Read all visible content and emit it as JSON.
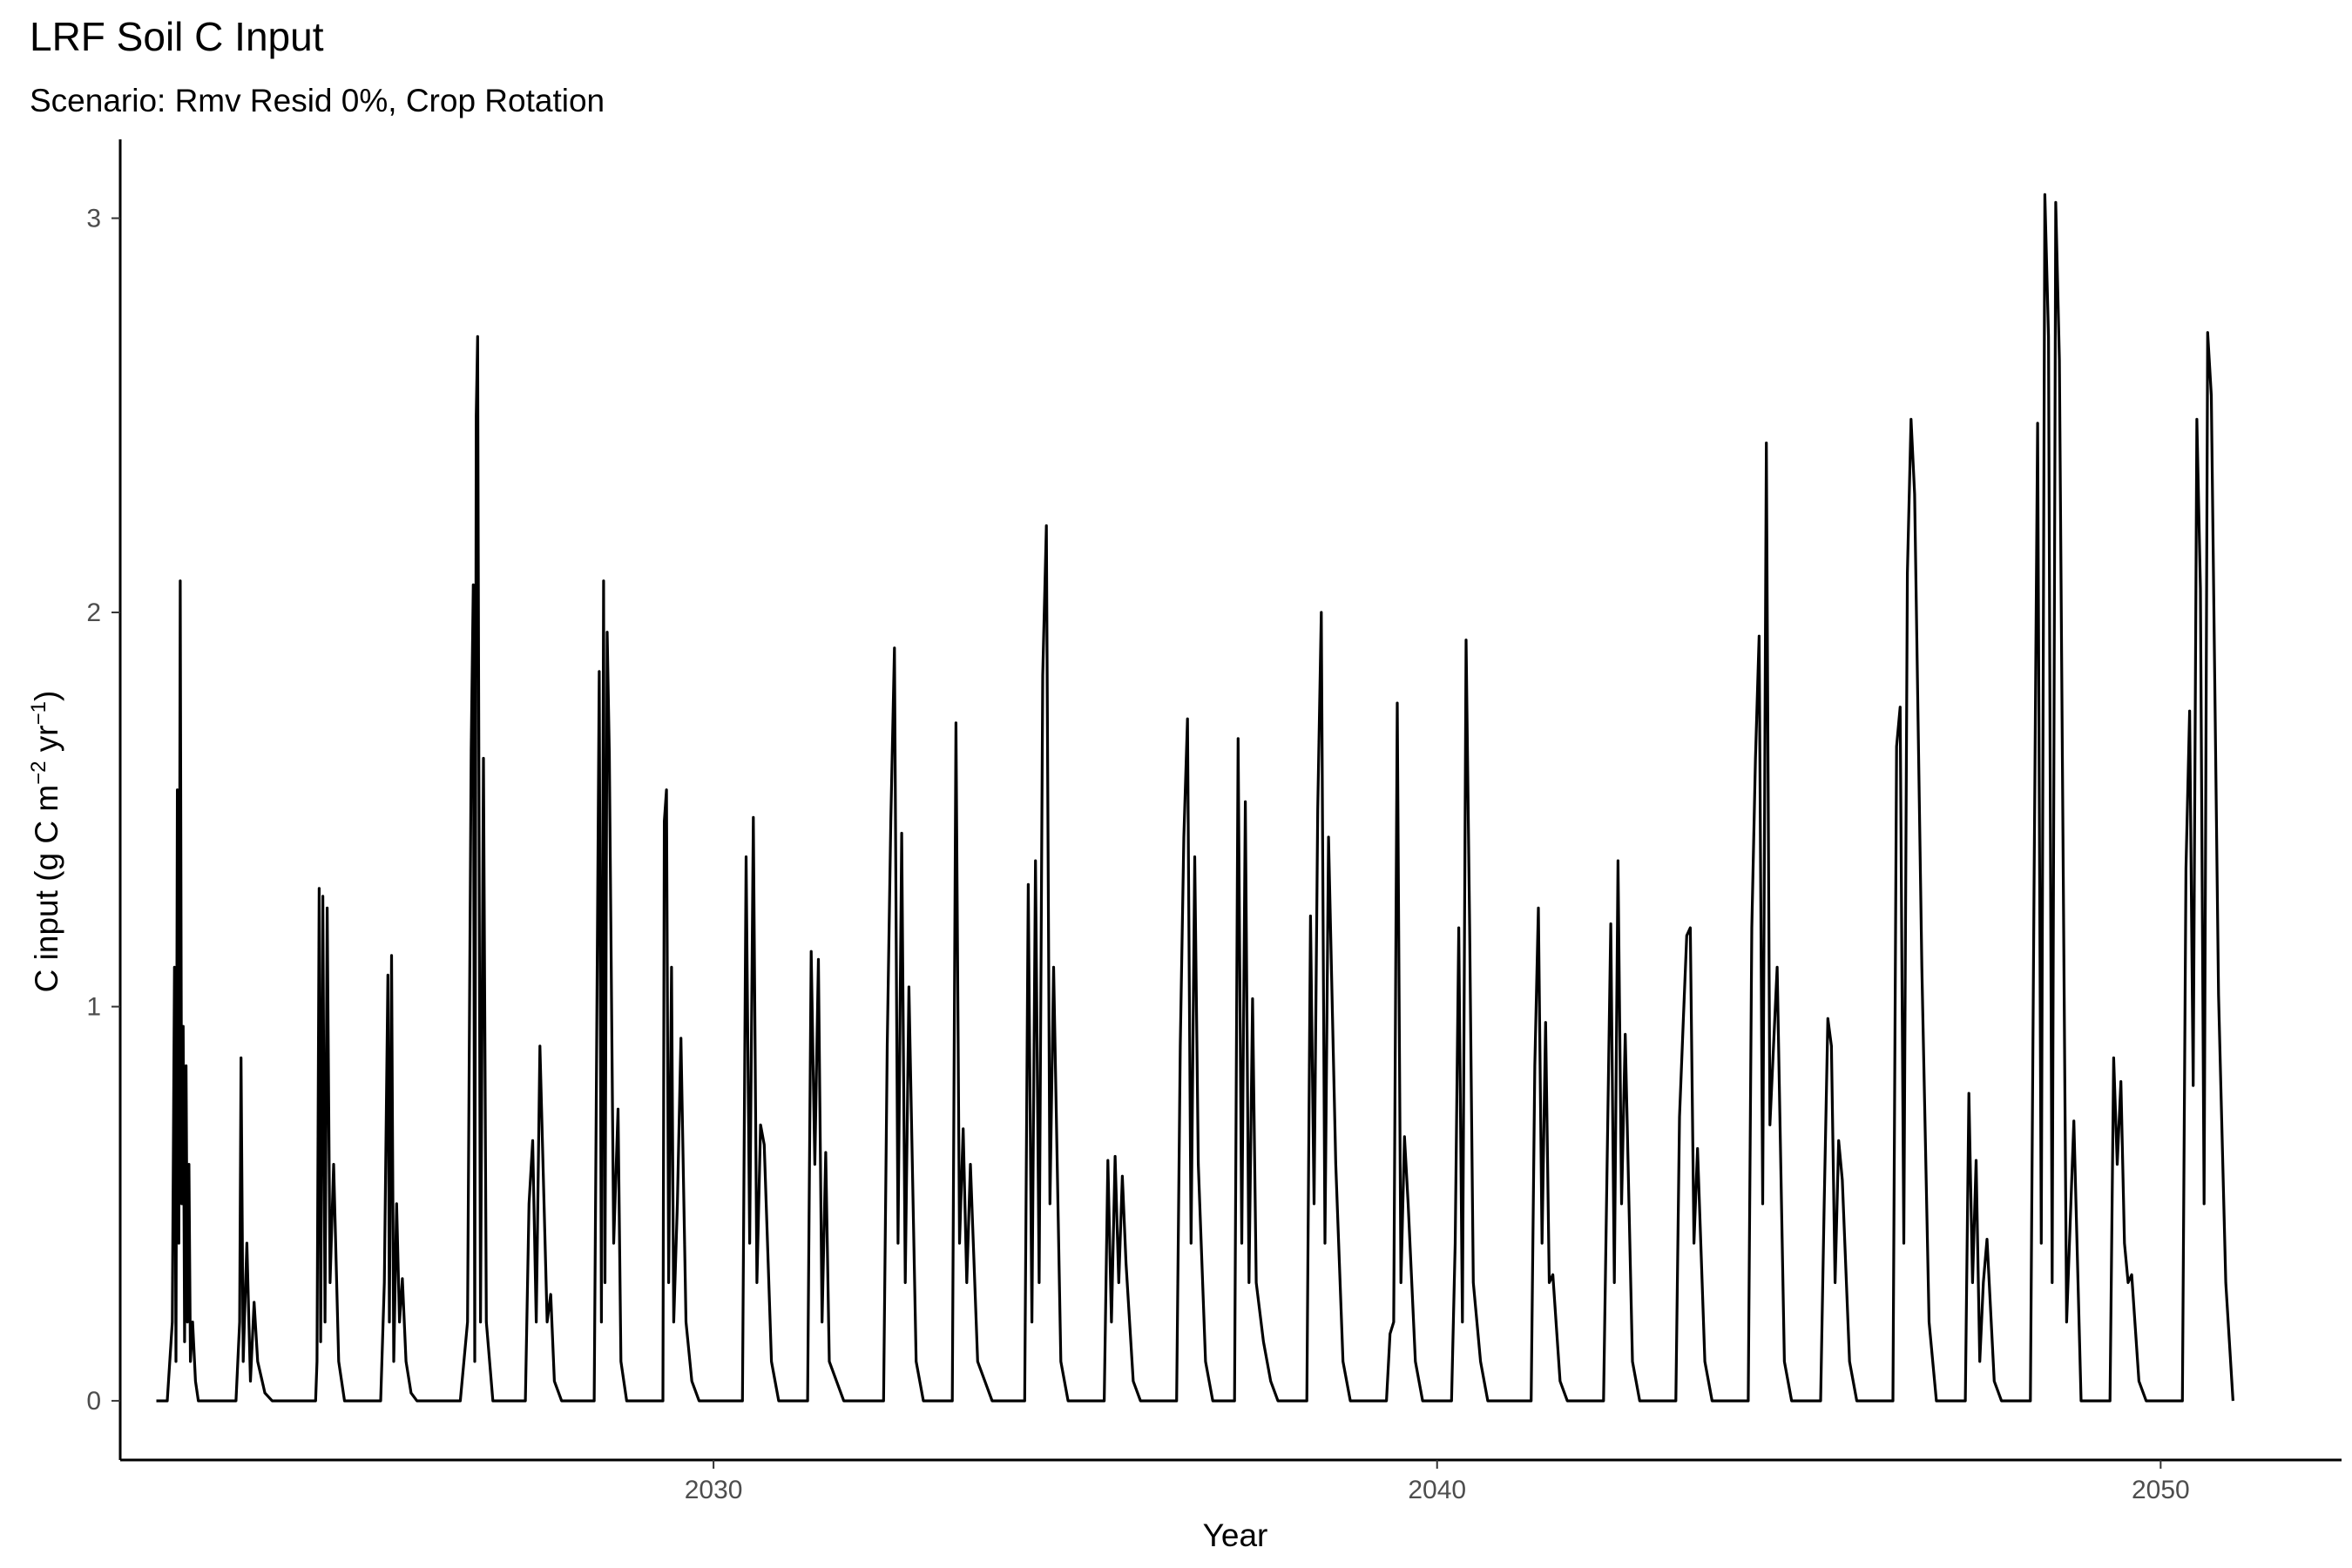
{
  "chart_data": {
    "type": "line",
    "title": "LRF Soil C Input",
    "subtitle": "Scenario: Rmv Resid 0%, Crop Rotation",
    "xlabel": "Year",
    "ylabel_parts": [
      "C input (g C m",
      "−2",
      " yr",
      "−1",
      ")"
    ],
    "x_ticks": [
      2030,
      2040,
      2050
    ],
    "y_ticks": [
      0,
      1,
      2,
      3
    ],
    "xlim": [
      2021.8,
      2052.5
    ],
    "ylim": [
      -0.15,
      3.2
    ],
    "grid": false,
    "legend": "none",
    "series": [
      {
        "x": [
          2022.3,
          2022.45,
          2022.52,
          2022.55,
          2022.57,
          2022.59,
          2022.61,
          2022.63,
          2022.65,
          2022.67,
          2022.69,
          2022.71,
          2022.73,
          2022.75,
          2022.77,
          2022.8,
          2022.84,
          2022.88,
          2022.95,
          2023.0,
          2023.4,
          2023.45,
          2023.47,
          2023.5,
          2023.55,
          2023.6,
          2023.65,
          2023.7,
          2023.8,
          2023.9,
          2024.5,
          2024.52,
          2024.55,
          2024.57,
          2024.6,
          2024.63,
          2024.66,
          2024.7,
          2024.75,
          2024.82,
          2024.9,
          2025.4,
          2025.45,
          2025.5,
          2025.52,
          2025.55,
          2025.58,
          2025.62,
          2025.66,
          2025.7,
          2025.75,
          2025.82,
          2025.9,
          2026.5,
          2026.6,
          2026.65,
          2026.68,
          2026.7,
          2026.72,
          2026.74,
          2026.78,
          2026.82,
          2026.86,
          2026.95,
          2027.4,
          2027.45,
          2027.5,
          2027.55,
          2027.6,
          2027.7,
          2027.75,
          2027.8,
          2027.9,
          2028.35,
          2028.4,
          2028.42,
          2028.45,
          2028.48,
          2028.5,
          2028.53,
          2028.56,
          2028.62,
          2028.68,
          2028.72,
          2028.8,
          2029.3,
          2029.32,
          2029.35,
          2029.38,
          2029.42,
          2029.45,
          2029.5,
          2029.55,
          2029.62,
          2029.7,
          2029.8,
          2030.4,
          2030.45,
          2030.5,
          2030.55,
          2030.6,
          2030.65,
          2030.7,
          2030.8,
          2030.9,
          2031.3,
          2031.35,
          2031.4,
          2031.45,
          2031.5,
          2031.55,
          2031.6,
          2031.7,
          2031.8,
          2032.35,
          2032.4,
          2032.45,
          2032.5,
          2032.55,
          2032.6,
          2032.65,
          2032.7,
          2032.8,
          2032.9,
          2033.3,
          2033.35,
          2033.4,
          2033.45,
          2033.5,
          2033.55,
          2033.65,
          2033.75,
          2033.85,
          2034.3,
          2034.35,
          2034.4,
          2034.45,
          2034.5,
          2034.55,
          2034.6,
          2034.65,
          2034.7,
          2034.8,
          2034.9,
          2035.4,
          2035.45,
          2035.5,
          2035.55,
          2035.6,
          2035.65,
          2035.7,
          2035.8,
          2035.9,
          2036.4,
          2036.45,
          2036.5,
          2036.55,
          2036.6,
          2036.65,
          2036.7,
          2036.8,
          2036.9,
          2037.2,
          2037.25,
          2037.3,
          2037.35,
          2037.4,
          2037.45,
          2037.5,
          2037.6,
          2037.7,
          2037.8,
          2038.2,
          2038.25,
          2038.3,
          2038.35,
          2038.4,
          2038.45,
          2038.5,
          2038.6,
          2038.7,
          2038.8,
          2039.3,
          2039.35,
          2039.4,
          2039.45,
          2039.5,
          2039.55,
          2039.6,
          2039.7,
          2039.8,
          2040.2,
          2040.25,
          2040.3,
          2040.35,
          2040.4,
          2040.45,
          2040.5,
          2040.6,
          2040.7,
          2041.3,
          2041.35,
          2041.4,
          2041.45,
          2041.5,
          2041.55,
          2041.6,
          2041.7,
          2041.8,
          2042.3,
          2042.35,
          2042.4,
          2042.45,
          2042.5,
          2042.55,
          2042.6,
          2042.7,
          2042.8,
          2043.3,
          2043.35,
          2043.4,
          2043.45,
          2043.5,
          2043.55,
          2043.6,
          2043.7,
          2043.8,
          2044.3,
          2044.35,
          2044.4,
          2044.45,
          2044.5,
          2044.55,
          2044.6,
          2044.7,
          2044.8,
          2044.9,
          2045.3,
          2045.35,
          2045.4,
          2045.45,
          2045.5,
          2045.55,
          2045.6,
          2045.7,
          2045.8,
          2046.3,
          2046.35,
          2046.4,
          2046.45,
          2046.5,
          2046.55,
          2046.6,
          2046.7,
          2046.8,
          2046.9,
          2047.3,
          2047.35,
          2047.4,
          2047.45,
          2047.5,
          2047.55,
          2047.6,
          2047.7,
          2047.8,
          2048.2,
          2048.25,
          2048.3,
          2048.35,
          2048.4,
          2048.45,
          2048.5,
          2048.55,
          2048.6,
          2048.7,
          2048.8,
          2048.9,
          2049.3,
          2049.35,
          2049.4,
          2049.45,
          2049.5,
          2049.55,
          2049.6,
          2049.7,
          2049.8,
          2050.3,
          2050.35,
          2050.4,
          2050.45,
          2050.5,
          2050.55,
          2050.6,
          2050.65,
          2050.7,
          2050.8,
          2050.9,
          2051.0
        ],
        "y": [
          0,
          0,
          0.2,
          1.1,
          0.1,
          1.55,
          0.4,
          2.08,
          0.5,
          0.95,
          0.15,
          0.85,
          0.2,
          0.6,
          0.1,
          0.2,
          0.05,
          0,
          0,
          0,
          0,
          0.2,
          0.87,
          0.1,
          0.4,
          0.05,
          0.25,
          0.1,
          0.02,
          0,
          0,
          0.1,
          1.3,
          0.15,
          1.28,
          0.2,
          1.25,
          0.3,
          0.6,
          0.1,
          0,
          0,
          0.3,
          1.08,
          0.2,
          1.13,
          0.1,
          0.5,
          0.2,
          0.31,
          0.1,
          0.02,
          0,
          0,
          0.2,
          1.65,
          2.07,
          0.1,
          2.5,
          2.7,
          0.2,
          1.63,
          0.2,
          0,
          0,
          0.5,
          0.66,
          0.2,
          0.9,
          0.2,
          0.27,
          0.05,
          0,
          0,
          1.3,
          1.85,
          0.2,
          2.08,
          0.3,
          1.95,
          1.64,
          0.4,
          0.74,
          0.1,
          0,
          0,
          1.47,
          1.55,
          0.3,
          1.1,
          0.2,
          0.5,
          0.92,
          0.2,
          0.05,
          0,
          0,
          1.38,
          0.4,
          1.48,
          0.3,
          0.7,
          0.65,
          0.1,
          0,
          0,
          1.14,
          0.6,
          1.12,
          0.2,
          0.63,
          0.1,
          0.05,
          0,
          0,
          0.9,
          1.47,
          1.91,
          0.4,
          1.44,
          0.3,
          1.05,
          0.1,
          0,
          0,
          1.72,
          0.4,
          0.69,
          0.3,
          0.6,
          0.1,
          0.05,
          0,
          0,
          1.31,
          0.2,
          1.37,
          0.3,
          1.84,
          2.22,
          0.5,
          1.1,
          0.1,
          0,
          0,
          0.61,
          0.2,
          0.62,
          0.3,
          0.57,
          0.35,
          0.05,
          0,
          0,
          0.9,
          1.43,
          1.73,
          0.4,
          1.38,
          0.6,
          0.1,
          0,
          0,
          1.68,
          0.4,
          1.52,
          0.3,
          1.02,
          0.3,
          0.15,
          0.05,
          0,
          0,
          1.23,
          0.5,
          1.5,
          2.0,
          0.4,
          1.43,
          0.6,
          0.1,
          0,
          0,
          0.17,
          0.2,
          1.77,
          0.3,
          0.67,
          0.5,
          0.1,
          0,
          0,
          0.4,
          1.2,
          0.2,
          1.93,
          1.2,
          0.3,
          0.1,
          0,
          0,
          0.85,
          1.25,
          0.4,
          0.96,
          0.3,
          0.32,
          0.05,
          0,
          0,
          0.6,
          1.21,
          0.3,
          1.37,
          0.5,
          0.93,
          0.1,
          0,
          0,
          0.72,
          0.95,
          1.18,
          1.2,
          0.4,
          0.64,
          0.1,
          0,
          0,
          1.2,
          1.63,
          1.94,
          0.5,
          2.43,
          0.7,
          1.1,
          0.1,
          0,
          0,
          0.5,
          0.97,
          0.9,
          0.3,
          0.66,
          0.56,
          0.1,
          0,
          0,
          1.66,
          1.76,
          0.4,
          2.1,
          2.49,
          2.3,
          1.1,
          0.2,
          0,
          0,
          0.78,
          0.3,
          0.61,
          0.1,
          0.3,
          0.41,
          0.05,
          0,
          0,
          1.3,
          2.48,
          0.4,
          3.06,
          2.7,
          0.3,
          3.04,
          2.64,
          0.2,
          0.71,
          0,
          0,
          0.87,
          0.6,
          0.81,
          0.4,
          0.3,
          0.32,
          0.05,
          0,
          0,
          1.35,
          1.75,
          0.8,
          2.49,
          2.06,
          0.5,
          2.71,
          2.55,
          1.03,
          0.3,
          0
        ]
      }
    ]
  }
}
